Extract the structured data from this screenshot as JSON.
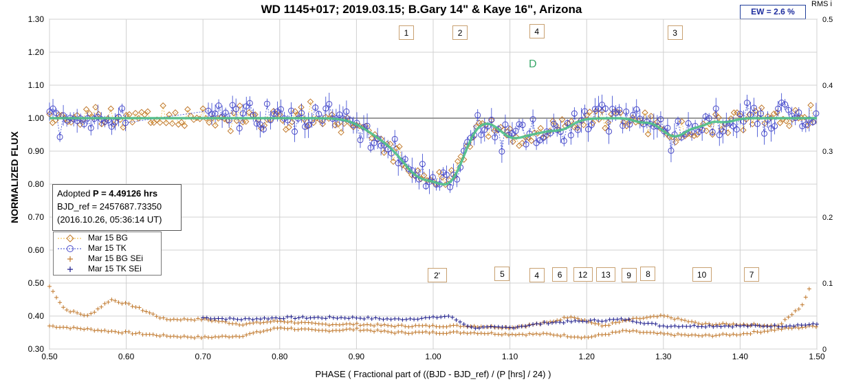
{
  "chart_data": {
    "type": "scatter",
    "title": "WD 1145+017; 2019.03.15; B.Gary 14\" & Kaye 16\",  Arizona",
    "xlabel": "PHASE ( Fractional part of ((BJD - BJD_ref) / (P [hrs] / 24) )",
    "ylabel": "NORMALIZED FLUX",
    "y2label": "RMS i",
    "xlim": [
      0.5,
      1.5
    ],
    "ylim": [
      0.3,
      1.3
    ],
    "y2lim": [
      0.0,
      0.5
    ],
    "xticks": [
      "0.50",
      "0.60",
      "0.70",
      "0.80",
      "0.90",
      "1.00",
      "1.10",
      "1.20",
      "1.30",
      "1.40",
      "1.50"
    ],
    "yticks": [
      "0.30",
      "0.40",
      "0.50",
      "0.60",
      "0.70",
      "0.80",
      "0.90",
      "1.00",
      "1.10",
      "1.20",
      "1.30"
    ],
    "y2ticks": [
      "0",
      "0.1",
      "0.2",
      "0.3",
      "0.4",
      "0.5"
    ],
    "grid": true,
    "legend_position": "left",
    "ew_label": "EW =  2.6 %",
    "model_label": "D",
    "model_curve": {
      "baseline": 1.0,
      "dips": [
        {
          "phase": 0.985,
          "depth": 0.165,
          "width": 0.025
        },
        {
          "phase": 1.025,
          "depth": 0.14,
          "width": 0.018
        },
        {
          "phase": 0.935,
          "depth": 0.05,
          "width": 0.025
        },
        {
          "phase": 1.13,
          "depth": 0.045,
          "width": 0.03
        },
        {
          "phase": 1.1,
          "depth": 0.03,
          "width": 0.015
        },
        {
          "phase": 1.17,
          "depth": 0.015,
          "width": 0.012
        },
        {
          "phase": 1.315,
          "depth": 0.055,
          "width": 0.018
        },
        {
          "phase": 1.35,
          "depth": 0.015,
          "width": 0.01
        },
        {
          "phase": 1.27,
          "depth": 0.01,
          "width": 0.01
        },
        {
          "phase": 1.38,
          "depth": 0.012,
          "width": 0.012
        }
      ]
    },
    "series": [
      {
        "name": "Mar 15 BG",
        "marker": "diamond",
        "color": "#c0782c",
        "line_color": "#f0b830",
        "seed": 11,
        "noise": 0.03
      },
      {
        "name": "Mar 15 TK",
        "marker": "circle",
        "color": "#4a4ac8",
        "line_color": "#2f3fcf",
        "seed": 29,
        "noise": 0.04
      },
      {
        "name": "Mar 15 BG SEi",
        "marker": "plus",
        "color": "#c0782c"
      },
      {
        "name": "Mar 15 TK SEi",
        "marker": "plus",
        "color": "#1c1c8c"
      }
    ],
    "sei_curves": {
      "bg_upper": [
        [
          0.5,
          0.49
        ],
        [
          0.52,
          0.42
        ],
        [
          0.55,
          0.4
        ],
        [
          0.58,
          0.45
        ],
        [
          0.61,
          0.43
        ],
        [
          0.65,
          0.39
        ],
        [
          0.7,
          0.39
        ],
        [
          0.75,
          0.375
        ],
        [
          0.8,
          0.385
        ],
        [
          0.85,
          0.375
        ],
        [
          0.9,
          0.375
        ],
        [
          0.95,
          0.37
        ],
        [
          1.0,
          0.37
        ],
        [
          1.05,
          0.37
        ],
        [
          1.1,
          0.365
        ],
        [
          1.15,
          0.38
        ],
        [
          1.18,
          0.4
        ],
        [
          1.22,
          0.37
        ],
        [
          1.26,
          0.39
        ],
        [
          1.3,
          0.4
        ],
        [
          1.35,
          0.375
        ],
        [
          1.4,
          0.375
        ],
        [
          1.45,
          0.37
        ],
        [
          1.48,
          0.43
        ],
        [
          1.49,
          0.48
        ]
      ],
      "bg_lower": [
        [
          0.5,
          0.37
        ],
        [
          0.55,
          0.36
        ],
        [
          0.6,
          0.35
        ],
        [
          0.65,
          0.34
        ],
        [
          0.7,
          0.335
        ],
        [
          0.75,
          0.34
        ],
        [
          0.8,
          0.365
        ],
        [
          0.85,
          0.355
        ],
        [
          0.9,
          0.36
        ],
        [
          0.95,
          0.35
        ],
        [
          1.0,
          0.35
        ],
        [
          1.05,
          0.35
        ],
        [
          1.1,
          0.345
        ],
        [
          1.15,
          0.345
        ],
        [
          1.2,
          0.335
        ],
        [
          1.25,
          0.355
        ],
        [
          1.3,
          0.345
        ],
        [
          1.35,
          0.34
        ],
        [
          1.4,
          0.345
        ],
        [
          1.45,
          0.36
        ],
        [
          1.5,
          0.37
        ]
      ],
      "tk": [
        [
          0.7,
          0.395
        ],
        [
          0.75,
          0.39
        ],
        [
          0.8,
          0.395
        ],
        [
          0.85,
          0.395
        ],
        [
          0.9,
          0.395
        ],
        [
          0.95,
          0.39
        ],
        [
          1.0,
          0.395
        ],
        [
          1.02,
          0.4
        ],
        [
          1.05,
          0.365
        ],
        [
          1.1,
          0.365
        ],
        [
          1.15,
          0.38
        ],
        [
          1.2,
          0.385
        ],
        [
          1.25,
          0.39
        ],
        [
          1.3,
          0.37
        ],
        [
          1.35,
          0.37
        ],
        [
          1.4,
          0.37
        ],
        [
          1.45,
          0.37
        ],
        [
          1.5,
          0.375
        ]
      ]
    },
    "event_labels": [
      {
        "text": "1",
        "x": 0.965,
        "y": 1.26
      },
      {
        "text": "2",
        "x": 1.035,
        "y": 1.26
      },
      {
        "text": "4",
        "x": 1.135,
        "y": 1.265
      },
      {
        "text": "3",
        "x": 1.315,
        "y": 1.26
      },
      {
        "text": "2'",
        "x": 1.005,
        "y": 0.525
      },
      {
        "text": "5",
        "x": 1.09,
        "y": 0.53
      },
      {
        "text": "4",
        "x": 1.135,
        "y": 0.525
      },
      {
        "text": "6",
        "x": 1.165,
        "y": 0.527
      },
      {
        "text": "12",
        "x": 1.195,
        "y": 0.527
      },
      {
        "text": "13",
        "x": 1.225,
        "y": 0.527
      },
      {
        "text": "9",
        "x": 1.255,
        "y": 0.525
      },
      {
        "text": "8",
        "x": 1.28,
        "y": 0.53
      },
      {
        "text": "10",
        "x": 1.35,
        "y": 0.527
      },
      {
        "text": "7",
        "x": 1.415,
        "y": 0.527
      }
    ]
  },
  "info": {
    "line1_prefix": "Adopted ",
    "line1_bold": "P = 4.49126 hrs",
    "line2": "BJD_ref = 2457687.73350",
    "line3": "(2016.10.26, 05:36:14 UT)"
  }
}
